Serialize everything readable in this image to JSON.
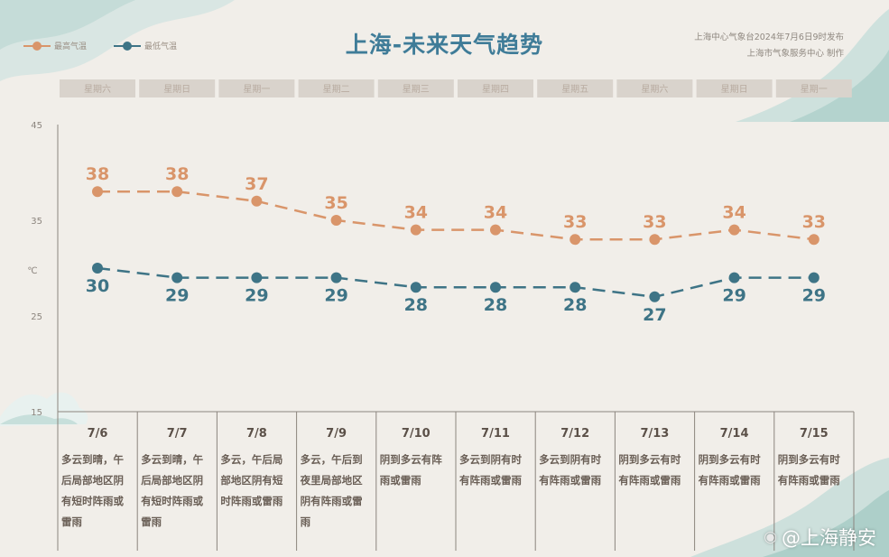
{
  "title": "上海-未来天气趋势",
  "source": {
    "line1": "上海中心气象台2024年7月6日9时发布",
    "line2": "上海市气象服务中心 制作"
  },
  "legend": [
    {
      "name": "最高气温",
      "color": "#d9956a"
    },
    {
      "name": "最低气温",
      "color": "#3e7486"
    }
  ],
  "watermark": "@上海静安",
  "chart_data": {
    "type": "line",
    "categories": [
      "7/6",
      "7/7",
      "7/8",
      "7/9",
      "7/10",
      "7/11",
      "7/12",
      "7/13",
      "7/14",
      "7/15"
    ],
    "weekdays": [
      "星期六",
      "星期日",
      "星期一",
      "星期二",
      "星期三",
      "星期四",
      "星期五",
      "星期六",
      "星期日",
      "星期一"
    ],
    "series": [
      {
        "name": "最高气温",
        "values": [
          38,
          38,
          37,
          35,
          34,
          34,
          33,
          33,
          34,
          33
        ],
        "color": "#d9956a"
      },
      {
        "name": "最低气温",
        "values": [
          30,
          29,
          29,
          29,
          28,
          28,
          28,
          27,
          29,
          29
        ],
        "color": "#3e7486"
      }
    ],
    "yticks": [
      "45",
      "35",
      "25",
      "15"
    ],
    "ylabel": "℃",
    "ylim": [
      15,
      45
    ],
    "grid": false,
    "weather": [
      "多云到晴，午后局部地区阴有短时阵雨或雷雨",
      "多云到晴，午后局部地区阴有短时阵雨或雷雨",
      "多云，午后局部地区阴有短时阵雨或雷雨",
      "多云，午后到夜里局部地区阴有阵雨或雷雨",
      "阴到多云有阵雨或雷雨",
      "多云到阴有时有阵雨或雷雨",
      "多云到阴有时有阵雨或雷雨",
      "阴到多云有时有阵雨或雷雨",
      "阴到多云有时有阵雨或雷雨",
      "阴到多云有时有阵雨或雷雨"
    ]
  }
}
